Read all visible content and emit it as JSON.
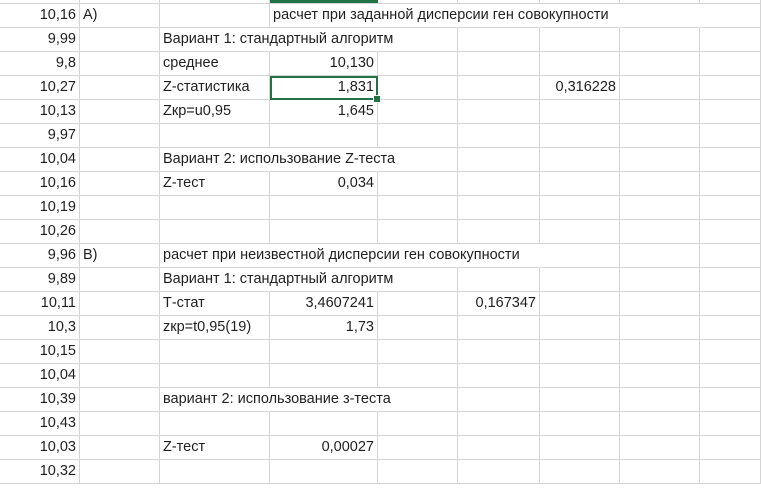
{
  "colA": [
    "10,16",
    "9,99",
    "9,8",
    "10,27",
    "10,13",
    "9,97",
    "10,04",
    "10,16",
    "10,19",
    "10,26",
    "9,96",
    "9,89",
    "10,11",
    "10,3",
    "10,15",
    "10,04",
    "10,39",
    "10,43",
    "10,03",
    "10,32"
  ],
  "sectionA": {
    "label": "A)",
    "header": "расчет при заданной дисперсии ген совокупности",
    "variant1_title": "Вариант 1: стандартный алгоритм",
    "mean_label": "среднее",
    "mean_value": "10,130",
    "z_label": "Z-статистика",
    "z_value": "1,831",
    "z_side_value": "0,316228",
    "zcrit_label": "Zкр=u0,95",
    "zcrit_value": "1,645",
    "variant2_title": "Вариант 2: использование Z-теста",
    "ztest_label": "Z-тест",
    "ztest_value": "0,034"
  },
  "sectionB": {
    "label": "B)",
    "header": "расчет при неизвестной дисперсии ген совокупности",
    "variant1_title": "Вариант 1: стандартный алгоритм",
    "t_label": "Т-стат",
    "t_value": "3,4607241",
    "t_side_value": "0,167347",
    "zcrit_label": "zкр=t0,95(19)",
    "zcrit_value": "1,73",
    "variant2_title": "вариант 2: использование з-теста",
    "ztest_label": "Z-тест",
    "ztest_value": "0,00027"
  },
  "colors": {
    "selection": "#217346",
    "gridline": "#d4d4d4"
  }
}
